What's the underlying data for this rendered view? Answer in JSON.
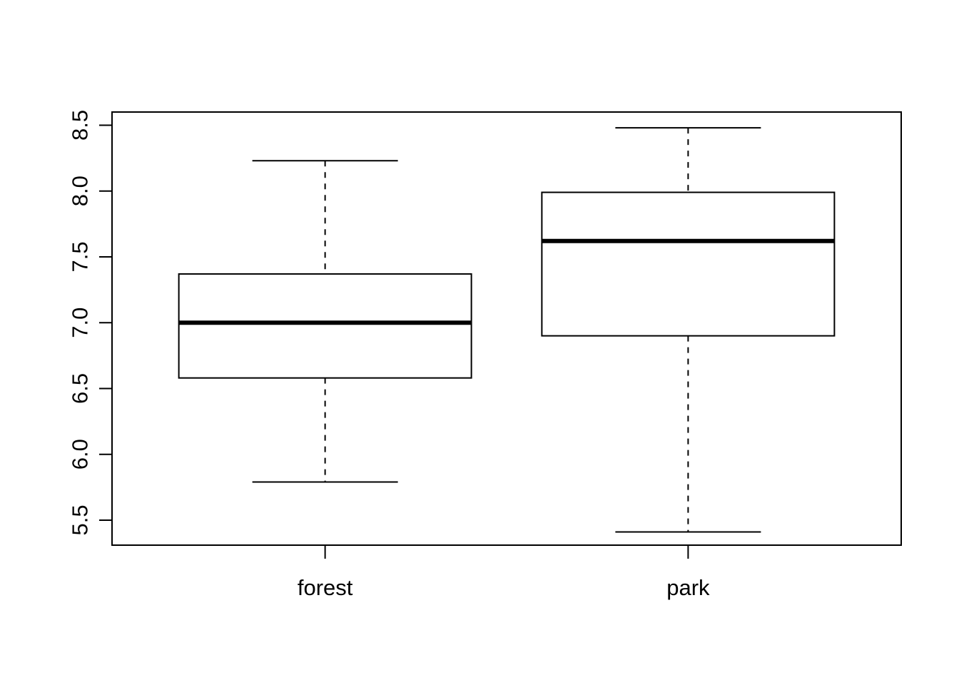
{
  "chart_data": {
    "type": "boxplot",
    "title": "",
    "xlabel": "",
    "ylabel": "",
    "categories": [
      "forest",
      "park"
    ],
    "boxes": [
      {
        "category": "forest",
        "whisker_low": 5.79,
        "q1": 6.58,
        "median": 7.0,
        "q3": 7.37,
        "whisker_high": 8.23
      },
      {
        "category": "park",
        "whisker_low": 5.41,
        "q1": 6.9,
        "median": 7.62,
        "q3": 7.99,
        "whisker_high": 8.48
      }
    ],
    "y_ticks": [
      "5.5",
      "6.0",
      "6.5",
      "7.0",
      "7.5",
      "8.0",
      "8.5"
    ],
    "ylim": [
      5.31,
      8.6
    ],
    "grid": false,
    "colors": {
      "box_fill": "#ffffff",
      "stroke": "#000000"
    }
  }
}
